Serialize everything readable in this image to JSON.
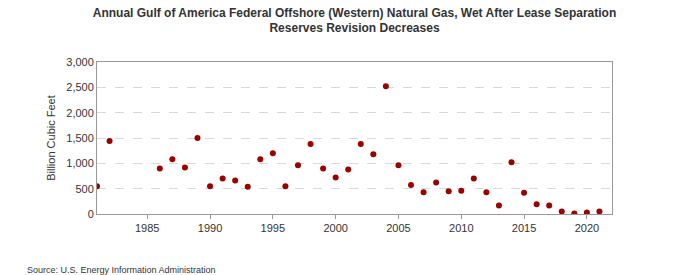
{
  "chart_data": {
    "type": "scatter",
    "title": "Annual Gulf of America Federal Offshore (Western) Natural Gas, Wet After Lease Separation\nReserves Revision Decreases",
    "y_label": "Billion Cubic Feet",
    "annotations": [
      "Source: U.S. Energy Information Administration"
    ],
    "x": [
      1981,
      1982,
      1986,
      1987,
      1988,
      1989,
      1990,
      1991,
      1992,
      1993,
      1994,
      1995,
      1996,
      1997,
      1998,
      1999,
      2000,
      2001,
      2002,
      2003,
      2004,
      2005,
      2006,
      2007,
      2008,
      2009,
      2010,
      2011,
      2012,
      2013,
      2014,
      2015,
      2016,
      2017,
      2018,
      2019,
      2020,
      2021
    ],
    "values": [
      550,
      1440,
      900,
      1080,
      920,
      1500,
      550,
      700,
      660,
      540,
      1080,
      1200,
      550,
      960,
      1380,
      900,
      720,
      880,
      1380,
      1180,
      2520,
      960,
      570,
      430,
      620,
      450,
      460,
      700,
      430,
      170,
      1020,
      420,
      190,
      170,
      50,
      10,
      30,
      50
    ],
    "color": "#990000",
    "marker": "circle",
    "xlim": [
      1981,
      2022
    ],
    "xticks": [
      1985,
      1990,
      1995,
      2000,
      2005,
      2010,
      2015,
      2020
    ],
    "ylim": [
      0,
      3000
    ],
    "yticks": [
      0,
      500,
      {
        "value": 1000,
        "label": "1,000"
      },
      {
        "value": 1500,
        "label": "1,500"
      },
      {
        "value": 2000,
        "label": "2,000"
      },
      {
        "value": 2500,
        "label": "2,500"
      },
      {
        "value": 3000,
        "label": "3,000"
      }
    ],
    "grid": true
  }
}
